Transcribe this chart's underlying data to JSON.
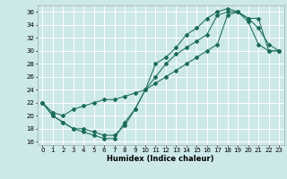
{
  "xlabel": "Humidex (Indice chaleur)",
  "xlim": [
    -0.5,
    23.5
  ],
  "ylim": [
    15.5,
    37
  ],
  "yticks": [
    16,
    18,
    20,
    22,
    24,
    26,
    28,
    30,
    32,
    34,
    36
  ],
  "xticks": [
    0,
    1,
    2,
    3,
    4,
    5,
    6,
    7,
    8,
    9,
    10,
    11,
    12,
    13,
    14,
    15,
    16,
    17,
    18,
    19,
    20,
    21,
    22,
    23
  ],
  "bg_color": "#cce8e8",
  "grid_color": "#ffffff",
  "line_color": "#1a6b5a",
  "line1_x": [
    0,
    1,
    2,
    3,
    4,
    5,
    6,
    7,
    8,
    9,
    10,
    11,
    12,
    13,
    14,
    15,
    16,
    17,
    18,
    19,
    20,
    21,
    22,
    23
  ],
  "line1_y": [
    22,
    20,
    19,
    18,
    17.5,
    17,
    16.5,
    16.5,
    19,
    21,
    24,
    28,
    29,
    30.5,
    32.5,
    33.5,
    35,
    36,
    36.5,
    36,
    35,
    33.5,
    31,
    30
  ],
  "line2_x": [
    0,
    1,
    2,
    3,
    4,
    5,
    6,
    7,
    8,
    9,
    10,
    11,
    12,
    13,
    14,
    15,
    16,
    17,
    18,
    19,
    20,
    21,
    22,
    23
  ],
  "line2_y": [
    22,
    20,
    19,
    18,
    18,
    17.5,
    17,
    17,
    18.5,
    21,
    24,
    26,
    28,
    29.5,
    30.5,
    31.5,
    32.5,
    35.5,
    36,
    36,
    34.5,
    31,
    30,
    30
  ],
  "line3_x": [
    0,
    1,
    2,
    3,
    4,
    5,
    6,
    7,
    8,
    9,
    10,
    11,
    12,
    13,
    14,
    15,
    16,
    17,
    18,
    19,
    20,
    21,
    22,
    23
  ],
  "line3_y": [
    22,
    20.5,
    20,
    21,
    21.5,
    22,
    22.5,
    22.5,
    23,
    23.5,
    24,
    25,
    26,
    27,
    28,
    29,
    30,
    31,
    35.5,
    36,
    35,
    35,
    30,
    30
  ]
}
